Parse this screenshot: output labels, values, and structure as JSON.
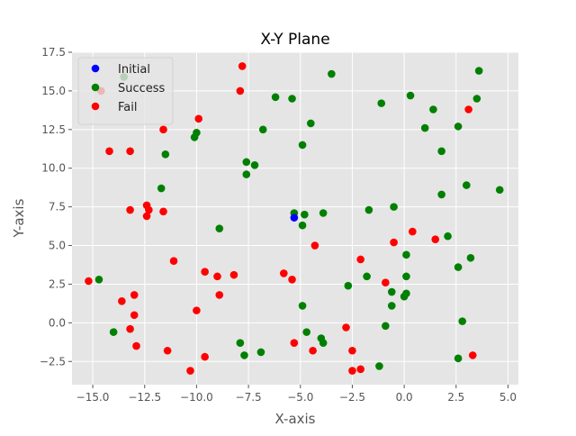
{
  "chart_data": {
    "type": "scatter",
    "title": "X-Y Plane",
    "xlabel": "X-axis",
    "ylabel": "Y-axis",
    "xlim": [
      -16.0,
      5.5
    ],
    "ylim": [
      -4.0,
      17.5
    ],
    "xticks": [
      -15.0,
      -12.5,
      -10.0,
      -7.5,
      -5.0,
      -2.5,
      0.0,
      2.5,
      5.0
    ],
    "xtick_labels": [
      "−15.0",
      "−12.5",
      "−10.0",
      "−7.5",
      "−5.0",
      "−2.5",
      "0.0",
      "2.5",
      "5.0"
    ],
    "yticks": [
      -2.5,
      0.0,
      2.5,
      5.0,
      7.5,
      10.0,
      12.5,
      15.0,
      17.5
    ],
    "ytick_labels": [
      "−2.5",
      "0.0",
      "2.5",
      "5.0",
      "7.5",
      "10.0",
      "12.5",
      "15.0",
      "17.5"
    ],
    "grid": true,
    "legend_position": "top-left",
    "colors": {
      "background": "#e5e5e5",
      "grid": "#ffffff",
      "tick_text": "#555555",
      "label_text": "#555555",
      "Initial": "#0000ff",
      "Success": "#008000",
      "Fail": "#ff0000"
    },
    "series": [
      {
        "name": "Initial",
        "points": [
          [
            -5.3,
            6.8
          ]
        ]
      },
      {
        "name": "Success",
        "points": [
          [
            -13.5,
            15.9
          ],
          [
            -14.7,
            2.8
          ],
          [
            -14.0,
            -0.6
          ],
          [
            -11.7,
            8.7
          ],
          [
            -11.5,
            10.9
          ],
          [
            -10.1,
            12.0
          ],
          [
            -10.0,
            12.3
          ],
          [
            -8.9,
            6.1
          ],
          [
            -7.9,
            -1.3
          ],
          [
            -7.7,
            -2.1
          ],
          [
            -7.6,
            10.4
          ],
          [
            -7.6,
            9.6
          ],
          [
            -7.2,
            10.2
          ],
          [
            -6.9,
            -1.9
          ],
          [
            -6.8,
            12.5
          ],
          [
            -6.2,
            14.6
          ],
          [
            -5.4,
            14.5
          ],
          [
            -5.3,
            7.1
          ],
          [
            -4.9,
            11.5
          ],
          [
            -4.9,
            6.3
          ],
          [
            -4.8,
            7.0
          ],
          [
            -4.9,
            1.1
          ],
          [
            -4.7,
            -0.6
          ],
          [
            -4.5,
            12.9
          ],
          [
            -4.0,
            -1.0
          ],
          [
            -3.9,
            -1.3
          ],
          [
            -3.9,
            7.1
          ],
          [
            -3.5,
            16.1
          ],
          [
            -2.7,
            2.4
          ],
          [
            -1.8,
            3.0
          ],
          [
            -1.7,
            7.3
          ],
          [
            -1.1,
            14.2
          ],
          [
            -1.2,
            -2.8
          ],
          [
            -0.9,
            -0.2
          ],
          [
            -0.6,
            2.0
          ],
          [
            -0.6,
            1.1
          ],
          [
            -0.5,
            7.5
          ],
          [
            0.0,
            1.7
          ],
          [
            0.1,
            1.9
          ],
          [
            0.1,
            3.0
          ],
          [
            0.1,
            4.4
          ],
          [
            0.3,
            14.7
          ],
          [
            1.0,
            12.6
          ],
          [
            1.4,
            13.8
          ],
          [
            1.8,
            11.1
          ],
          [
            1.8,
            8.3
          ],
          [
            2.1,
            5.6
          ],
          [
            2.6,
            12.7
          ],
          [
            2.6,
            3.6
          ],
          [
            2.6,
            -2.3
          ],
          [
            2.8,
            0.1
          ],
          [
            3.0,
            8.9
          ],
          [
            3.2,
            4.2
          ],
          [
            3.5,
            14.5
          ],
          [
            3.6,
            16.3
          ],
          [
            4.6,
            8.6
          ]
        ]
      },
      {
        "name": "Fail",
        "points": [
          [
            -15.2,
            2.7
          ],
          [
            -14.6,
            15.0
          ],
          [
            -14.2,
            11.1
          ],
          [
            -13.6,
            1.4
          ],
          [
            -13.2,
            11.1
          ],
          [
            -13.2,
            7.3
          ],
          [
            -13.2,
            -0.4
          ],
          [
            -13.0,
            1.8
          ],
          [
            -13.0,
            0.5
          ],
          [
            -12.9,
            -1.5
          ],
          [
            -12.4,
            7.6
          ],
          [
            -12.3,
            7.3
          ],
          [
            -12.4,
            6.9
          ],
          [
            -11.6,
            12.5
          ],
          [
            -11.6,
            7.2
          ],
          [
            -11.4,
            -1.8
          ],
          [
            -11.1,
            4.0
          ],
          [
            -10.3,
            -3.1
          ],
          [
            -10.0,
            0.8
          ],
          [
            -9.9,
            13.2
          ],
          [
            -9.6,
            3.3
          ],
          [
            -9.6,
            -2.2
          ],
          [
            -9.0,
            3.0
          ],
          [
            -8.9,
            1.8
          ],
          [
            -8.2,
            3.1
          ],
          [
            -7.9,
            15.0
          ],
          [
            -7.8,
            16.6
          ],
          [
            -5.8,
            3.2
          ],
          [
            -5.4,
            2.8
          ],
          [
            -5.3,
            -1.3
          ],
          [
            -4.4,
            -1.8
          ],
          [
            -4.3,
            5.0
          ],
          [
            -2.8,
            -0.3
          ],
          [
            -2.5,
            -1.8
          ],
          [
            -2.5,
            -3.1
          ],
          [
            -2.1,
            -3.0
          ],
          [
            -2.1,
            4.1
          ],
          [
            -0.9,
            2.6
          ],
          [
            -0.5,
            5.2
          ],
          [
            0.4,
            5.9
          ],
          [
            1.5,
            5.4
          ],
          [
            3.1,
            13.8
          ],
          [
            3.3,
            -2.1
          ]
        ]
      }
    ]
  }
}
